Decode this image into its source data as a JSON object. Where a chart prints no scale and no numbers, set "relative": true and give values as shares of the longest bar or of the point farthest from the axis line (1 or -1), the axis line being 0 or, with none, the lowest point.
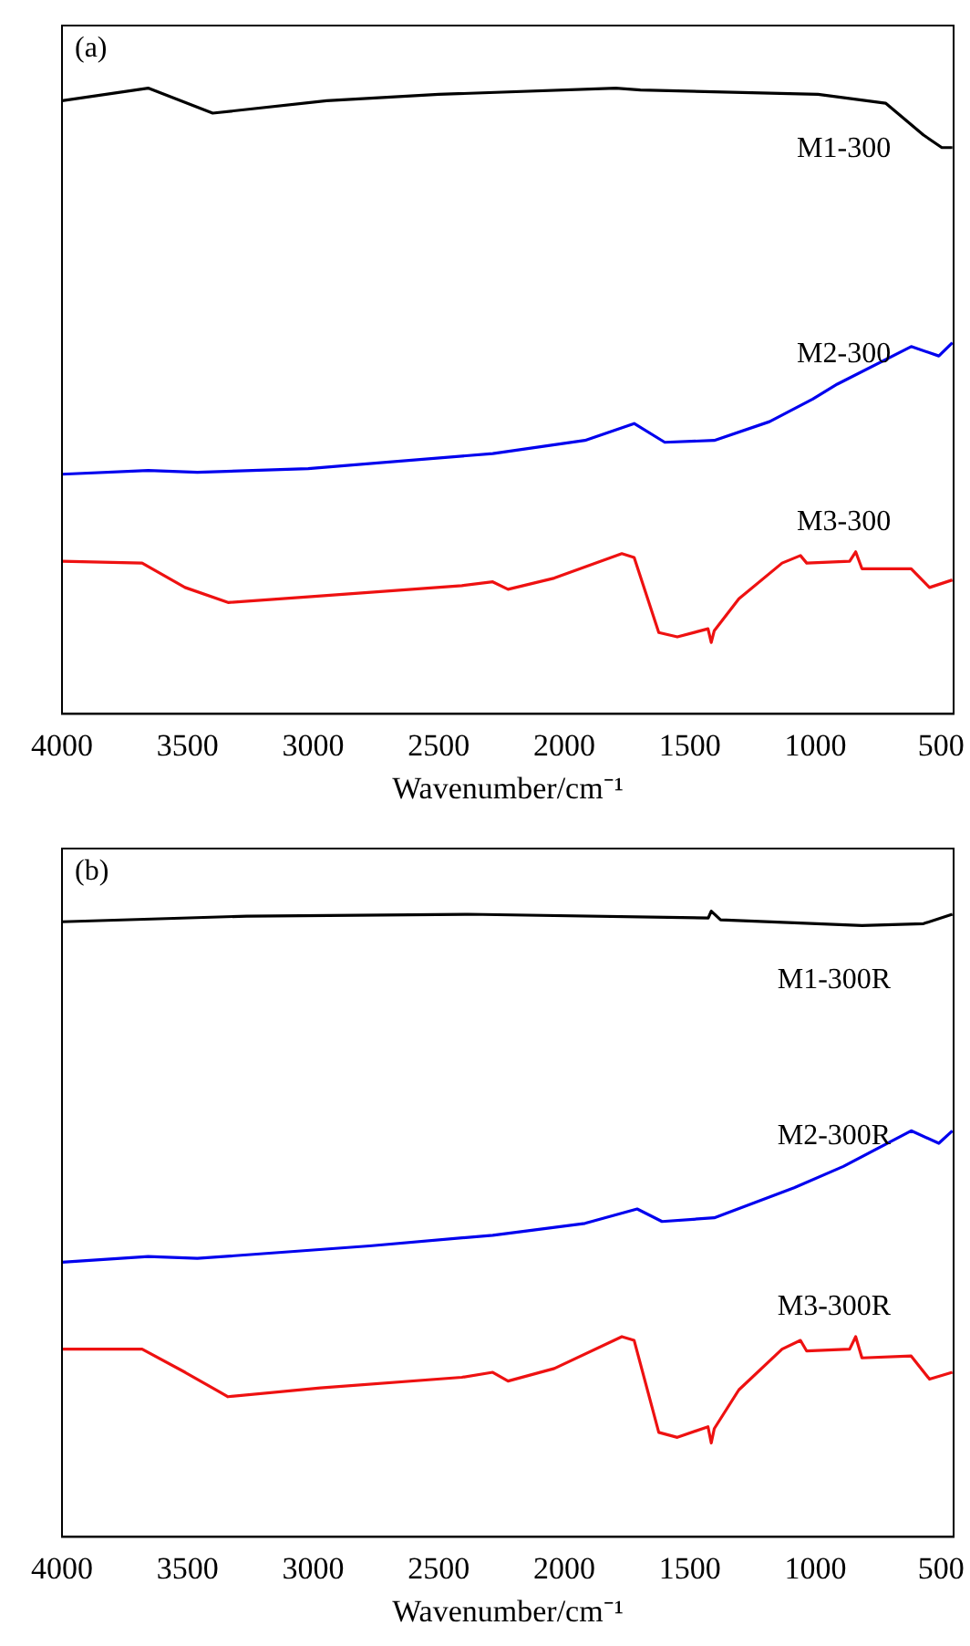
{
  "chart_data": [
    {
      "type": "line",
      "title": "(a)",
      "xlabel": "Wavenumber/cm⁻¹",
      "relative": true,
      "marker": "none",
      "line_style": "solid",
      "grid": false,
      "legend": false,
      "xlim": [
        4000,
        450
      ],
      "xticks": [
        4000,
        3500,
        3000,
        2500,
        2000,
        1500,
        1000,
        500
      ],
      "series": [
        {
          "name": "M1-300",
          "color": "#000000",
          "x": [
            4000,
            3657,
            3400,
            2946,
            2500,
            1795,
            1697,
            990,
            721,
            570,
            497,
            455
          ],
          "values": [
            0.98,
            1.0,
            0.96,
            0.98,
            0.99,
            1.0,
            0.997,
            0.99,
            0.976,
            0.925,
            0.905,
            0.905
          ]
        },
        {
          "name": "M2-300",
          "color": "#0000ee",
          "x": [
            4000,
            3657,
            3461,
            3020,
            2285,
            1918,
            1722,
            1600,
            1403,
            1183,
            1011,
            913,
            619,
            509,
            455
          ],
          "values": [
            0.383,
            0.389,
            0.386,
            0.392,
            0.416,
            0.437,
            0.464,
            0.434,
            0.437,
            0.467,
            0.503,
            0.527,
            0.587,
            0.572,
            0.593
          ]
        },
        {
          "name": "M3-300",
          "color": "#ee1111",
          "x": [
            4000,
            3681,
            3510,
            3339,
            3020,
            2408,
            2285,
            2224,
            2040,
            1771,
            1722,
            1624,
            1550,
            1428,
            1415,
            1403,
            1305,
            1133,
            1060,
            1035,
            864,
            840,
            815,
            619,
            546,
            455
          ],
          "values": [
            0.244,
            0.241,
            0.202,
            0.178,
            0.187,
            0.205,
            0.211,
            0.199,
            0.217,
            0.256,
            0.25,
            0.13,
            0.123,
            0.136,
            0.114,
            0.133,
            0.184,
            0.241,
            0.253,
            0.241,
            0.244,
            0.259,
            0.232,
            0.232,
            0.202,
            0.214
          ]
        }
      ]
    },
    {
      "type": "line",
      "title": "(b)",
      "xlabel": "Wavenumber/cm⁻¹",
      "relative": true,
      "marker": "none",
      "line_style": "solid",
      "grid": false,
      "legend": false,
      "xlim": [
        4000,
        450
      ],
      "xticks": [
        4000,
        3500,
        3000,
        2500,
        2000,
        1500,
        1000,
        500
      ],
      "series": [
        {
          "name": "M1-300R",
          "color": "#000000",
          "x": [
            4000,
            3265,
            2383,
            1427,
            1415,
            1378,
            815,
            570,
            455
          ],
          "values": [
            0.983,
            0.992,
            0.995,
            0.989,
            1.0,
            0.986,
            0.977,
            0.98,
            0.995
          ]
        },
        {
          "name": "M2-300R",
          "color": "#0000ee",
          "x": [
            4000,
            3657,
            3461,
            2775,
            2285,
            1918,
            1710,
            1611,
            1403,
            1085,
            889,
            619,
            509,
            455
          ],
          "values": [
            0.439,
            0.448,
            0.445,
            0.465,
            0.482,
            0.501,
            0.524,
            0.504,
            0.51,
            0.558,
            0.592,
            0.649,
            0.629,
            0.649
          ]
        },
        {
          "name": "M3-300R",
          "color": "#ee1111",
          "x": [
            4000,
            3681,
            3510,
            3339,
            2971,
            2408,
            2285,
            2224,
            2040,
            1771,
            1722,
            1624,
            1550,
            1428,
            1415,
            1403,
            1305,
            1133,
            1060,
            1035,
            864,
            840,
            815,
            619,
            546,
            455
          ],
          "values": [
            0.3,
            0.3,
            0.263,
            0.224,
            0.238,
            0.255,
            0.263,
            0.249,
            0.269,
            0.32,
            0.314,
            0.167,
            0.159,
            0.176,
            0.15,
            0.173,
            0.235,
            0.3,
            0.314,
            0.297,
            0.3,
            0.32,
            0.286,
            0.289,
            0.252,
            0.263
          ]
        }
      ]
    }
  ]
}
